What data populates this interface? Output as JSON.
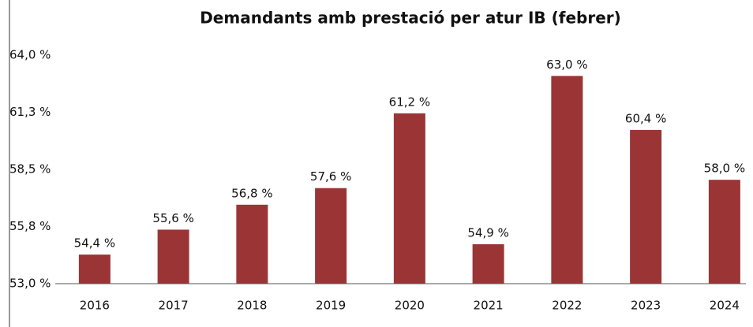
{
  "chart_data": {
    "type": "bar",
    "title": "Demandants amb prestació per atur IB (febrer)",
    "categories": [
      "2016",
      "2017",
      "2018",
      "2019",
      "2020",
      "2021",
      "2022",
      "2023",
      "2024"
    ],
    "values": [
      54.4,
      55.6,
      56.8,
      57.6,
      61.2,
      54.9,
      63.0,
      60.4,
      58.0
    ],
    "value_labels": [
      "54,4 %",
      "55,6 %",
      "56,8 %",
      "57,6 %",
      "61,2 %",
      "54,9 %",
      "63,0 %",
      "60,4 %",
      "58,0 %"
    ],
    "color": "#9b3535",
    "ylim": [
      53,
      64
    ],
    "yticks": [
      {
        "value": 53,
        "label": "53,0 %"
      },
      {
        "value": 55.75,
        "label": "55,8 %"
      },
      {
        "value": 58.5,
        "label": "58,5 %"
      },
      {
        "value": 61.25,
        "label": "61,3 %"
      },
      {
        "value": 64,
        "label": "64,0 %"
      }
    ],
    "grid": false
  }
}
